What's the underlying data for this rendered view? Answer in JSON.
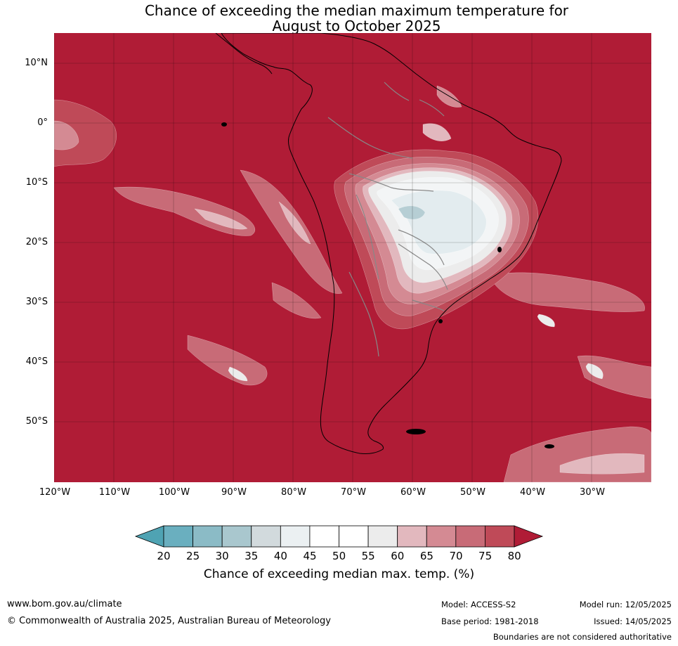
{
  "title": {
    "line1": "Chance of exceeding the median maximum temperature for",
    "line2": "August to October 2025"
  },
  "latitude_labels": [
    "10°N",
    "0°",
    "10°S",
    "20°S",
    "30°S",
    "40°S",
    "50°S"
  ],
  "longitude_labels": [
    "120°W",
    "110°W",
    "100°W",
    "90°W",
    "80°W",
    "70°W",
    "60°W",
    "50°W",
    "40°W",
    "30°W"
  ],
  "colorbar": {
    "ticks": [
      "20",
      "25",
      "30",
      "35",
      "40",
      "45",
      "50",
      "55",
      "60",
      "65",
      "70",
      "75",
      "80"
    ],
    "colors": [
      "#4fa3b3",
      "#6aafbf",
      "#8bbbc6",
      "#a9c7ce",
      "#d2dadd",
      "#ebf0f2",
      "#ffffff",
      "#ffffff",
      "#ececec",
      "#e2b8be",
      "#d48a93",
      "#c86b77",
      "#bf4a58",
      "#b01c36"
    ],
    "label": "Chance of exceeding median max. temp. (%)"
  },
  "map_colors": {
    "background": "#b01c36",
    "class_75": "#bf4a58",
    "class_70": "#c86b77",
    "class_65": "#d48a93",
    "class_60": "#e2b8be",
    "class_55": "#ececec",
    "class_50": "#f3f5f6",
    "class_45": "#e3ecef",
    "class_40": "#b6ced4",
    "coast": "#000000",
    "borders": "#888888"
  },
  "footer": {
    "website": "www.bom.gov.au/climate",
    "copyright": "© Commonwealth of Australia 2025, Australian Bureau of Meteorology",
    "model": "Model: ACCESS-S2",
    "base_period": "Base period: 1981-2018",
    "model_run": "Model run: 12/05/2025",
    "issued": "Issued: 14/05/2025",
    "disclaimer": "Boundaries are not considered authoritative"
  }
}
